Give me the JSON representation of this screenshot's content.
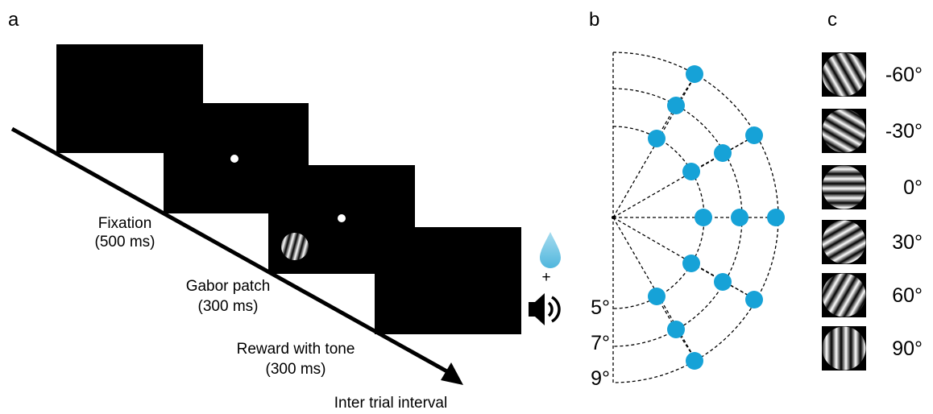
{
  "panels": {
    "a": "a",
    "b": "b",
    "c": "c"
  },
  "timeline": {
    "stages": [
      {
        "name": "Fixation",
        "duration": "(500 ms)"
      },
      {
        "name": "Gabor patch",
        "duration": "(300 ms)"
      },
      {
        "name": "Reward with tone",
        "duration": "(300 ms)"
      }
    ],
    "end": "Inter trial interval",
    "plus": "+"
  },
  "eccentricities": [
    "5°",
    "7°",
    "9°"
  ],
  "orientations": [
    "-60°",
    "-30°",
    "0°",
    "30°",
    "60°",
    "90°"
  ]
}
